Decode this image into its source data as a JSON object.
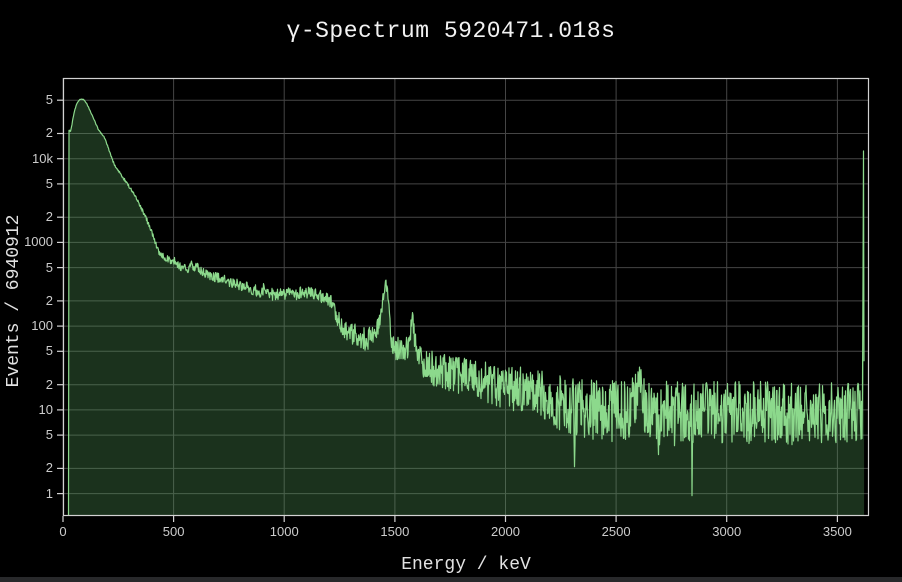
{
  "title": "γ-Spectrum 5920471.018s",
  "x_axis": {
    "label": "Energy / keV",
    "ticks": [
      {
        "value": 0,
        "label": "0"
      },
      {
        "value": 500,
        "label": "500"
      },
      {
        "value": 1000,
        "label": "1000"
      },
      {
        "value": 1500,
        "label": "1500"
      },
      {
        "value": 2000,
        "label": "2000"
      },
      {
        "value": 2500,
        "label": "2500"
      },
      {
        "value": 3000,
        "label": "3000"
      },
      {
        "value": 3500,
        "label": "3500"
      }
    ]
  },
  "y_axis": {
    "label": "Events / 6940912",
    "scale": "log",
    "ticks": [
      {
        "value": 1,
        "label": "1"
      },
      {
        "value": 2,
        "label": "2"
      },
      {
        "value": 5,
        "label": "5"
      },
      {
        "value": 10,
        "label": "10"
      },
      {
        "value": 20,
        "label": "2"
      },
      {
        "value": 50,
        "label": "5"
      },
      {
        "value": 100,
        "label": "100"
      },
      {
        "value": 200,
        "label": "2"
      },
      {
        "value": 500,
        "label": "5"
      },
      {
        "value": 1000,
        "label": "1000"
      },
      {
        "value": 2000,
        "label": "2"
      },
      {
        "value": 5000,
        "label": "5"
      },
      {
        "value": 10000,
        "label": "10k"
      },
      {
        "value": 20000,
        "label": "2"
      },
      {
        "value": 50000,
        "label": "5"
      }
    ]
  },
  "colors": {
    "background": "#000000",
    "line": "#8cd98c",
    "fill": "rgba(90,165,95,0.30)",
    "grid": "#454545",
    "axis": "#d2d2d2",
    "tick_label": "#cccccc",
    "title": "#f2f2f2",
    "axis_title": "#e2e2e2",
    "window_edge": "#28292b"
  },
  "chart_data": {
    "type": "area",
    "title": "γ-Spectrum 5920471.018s",
    "xlabel": "Energy / keV",
    "ylabel": "Events / 6940912",
    "xlim": [
      0,
      3643
    ],
    "ylim": [
      0.54,
      92000
    ],
    "yscale": "log",
    "grid": true,
    "total_events": "6940912",
    "live_time_s": "5920471.018",
    "notable_peaks_keV": [
      90,
      583,
      609,
      911,
      1120,
      1460,
      1580,
      2614,
      3617
    ],
    "noise": {
      "model": "log-uniform, amplitude_decades = min(0.5, 1.15/sqrt(counts))",
      "seed": 20240613
    },
    "series": [
      {
        "name": "gamma-spectrum",
        "points": [
          [
            25,
            0.5
          ],
          [
            26,
            21500
          ],
          [
            30,
            22000
          ],
          [
            34,
            21000
          ],
          [
            38,
            23500
          ],
          [
            44,
            29000
          ],
          [
            50,
            35000
          ],
          [
            57,
            41000
          ],
          [
            64,
            46000
          ],
          [
            71,
            49500
          ],
          [
            78,
            51200
          ],
          [
            84,
            51800
          ],
          [
            90,
            51400
          ],
          [
            96,
            50000
          ],
          [
            103,
            47500
          ],
          [
            110,
            44000
          ],
          [
            118,
            39800
          ],
          [
            126,
            35800
          ],
          [
            134,
            32000
          ],
          [
            142,
            28600
          ],
          [
            150,
            25600
          ],
          [
            158,
            23000
          ],
          [
            165,
            21200
          ],
          [
            172,
            20000
          ],
          [
            179,
            19300
          ],
          [
            186,
            18200
          ],
          [
            193,
            16600
          ],
          [
            200,
            14600
          ],
          [
            208,
            12600
          ],
          [
            216,
            11000
          ],
          [
            224,
            9600
          ],
          [
            232,
            8600
          ],
          [
            240,
            7900
          ],
          [
            250,
            7200
          ],
          [
            260,
            6600
          ],
          [
            272,
            5950
          ],
          [
            284,
            5350
          ],
          [
            296,
            4800
          ],
          [
            310,
            4200
          ],
          [
            325,
            3600
          ],
          [
            340,
            3050
          ],
          [
            355,
            2550
          ],
          [
            370,
            2100
          ],
          [
            385,
            1700
          ],
          [
            400,
            1350
          ],
          [
            412,
            1100
          ],
          [
            424,
            900
          ],
          [
            436,
            760
          ],
          [
            450,
            690
          ],
          [
            465,
            645
          ],
          [
            480,
            610
          ],
          [
            495,
            585
          ],
          [
            508,
            600
          ],
          [
            516,
            540
          ],
          [
            530,
            505
          ],
          [
            545,
            490
          ],
          [
            560,
            480
          ],
          [
            572,
            505
          ],
          [
            581,
            550
          ],
          [
            590,
            490
          ],
          [
            600,
            505
          ],
          [
            610,
            515
          ],
          [
            620,
            460
          ],
          [
            635,
            435
          ],
          [
            655,
            415
          ],
          [
            675,
            398
          ],
          [
            695,
            382
          ],
          [
            720,
            362
          ],
          [
            745,
            345
          ],
          [
            770,
            328
          ],
          [
            795,
            315
          ],
          [
            820,
            300
          ],
          [
            845,
            285
          ],
          [
            870,
            272
          ],
          [
            890,
            258
          ],
          [
            903,
            270
          ],
          [
            911,
            290
          ],
          [
            919,
            262
          ],
          [
            935,
            246
          ],
          [
            955,
            238
          ],
          [
            975,
            240
          ],
          [
            995,
            248
          ],
          [
            1015,
            243
          ],
          [
            1035,
            238
          ],
          [
            1055,
            243
          ],
          [
            1075,
            252
          ],
          [
            1095,
            247
          ],
          [
            1110,
            252
          ],
          [
            1122,
            262
          ],
          [
            1134,
            246
          ],
          [
            1150,
            236
          ],
          [
            1170,
            226
          ],
          [
            1190,
            216
          ],
          [
            1207,
            203
          ],
          [
            1218,
            185
          ],
          [
            1228,
            158
          ],
          [
            1238,
            132
          ],
          [
            1248,
            114
          ],
          [
            1258,
            103
          ],
          [
            1270,
            95
          ],
          [
            1285,
            88
          ],
          [
            1300,
            83
          ],
          [
            1318,
            79
          ],
          [
            1336,
            76
          ],
          [
            1354,
            72
          ],
          [
            1372,
            69
          ],
          [
            1390,
            72
          ],
          [
            1408,
            80
          ],
          [
            1422,
            92
          ],
          [
            1434,
            120
          ],
          [
            1444,
            185
          ],
          [
            1452,
            280
          ],
          [
            1458,
            330
          ],
          [
            1464,
            285
          ],
          [
            1470,
            195
          ],
          [
            1477,
            115
          ],
          [
            1484,
            72
          ],
          [
            1492,
            58
          ],
          [
            1502,
            54
          ],
          [
            1515,
            52
          ],
          [
            1530,
            50
          ],
          [
            1545,
            52
          ],
          [
            1558,
            58
          ],
          [
            1567,
            72
          ],
          [
            1574,
            105
          ],
          [
            1579,
            125
          ],
          [
            1585,
            95
          ],
          [
            1592,
            60
          ],
          [
            1600,
            45
          ],
          [
            1612,
            40
          ],
          [
            1625,
            37
          ],
          [
            1645,
            34
          ],
          [
            1670,
            31
          ],
          [
            1700,
            29
          ],
          [
            1730,
            27.5
          ],
          [
            1760,
            26
          ],
          [
            1790,
            25
          ],
          [
            1820,
            24
          ],
          [
            1850,
            23
          ],
          [
            1885,
            22
          ],
          [
            1920,
            21
          ],
          [
            1955,
            20
          ],
          [
            1990,
            19.5
          ],
          [
            2025,
            18.5
          ],
          [
            2060,
            17.5
          ],
          [
            2095,
            16.5
          ],
          [
            2130,
            15.5
          ],
          [
            2165,
            14.5
          ],
          [
            2200,
            13.5
          ],
          [
            2235,
            12.5
          ],
          [
            2270,
            11.8
          ],
          [
            2305,
            11
          ],
          [
            2312,
            4.5
          ],
          [
            2318,
            11
          ],
          [
            2340,
            10.5
          ],
          [
            2370,
            10
          ],
          [
            2400,
            10
          ],
          [
            2430,
            10
          ],
          [
            2460,
            9.8
          ],
          [
            2490,
            9.5
          ],
          [
            2520,
            9.5
          ],
          [
            2550,
            10
          ],
          [
            2575,
            12
          ],
          [
            2595,
            16
          ],
          [
            2608,
            24
          ],
          [
            2618,
            16
          ],
          [
            2630,
            11.5
          ],
          [
            2650,
            9.5
          ],
          [
            2670,
            9.2
          ],
          [
            2688,
            9
          ],
          [
            2691,
            2.4
          ],
          [
            2694,
            9
          ],
          [
            2715,
            9.2
          ],
          [
            2740,
            9
          ],
          [
            2765,
            8.8
          ],
          [
            2790,
            9
          ],
          [
            2815,
            9.2
          ],
          [
            2841,
            9
          ],
          [
            2844,
            1.15
          ],
          [
            2847,
            9
          ],
          [
            2870,
            9.2
          ],
          [
            2900,
            9
          ],
          [
            2930,
            9.3
          ],
          [
            2960,
            9
          ],
          [
            3000,
            9.2
          ],
          [
            3040,
            9
          ],
          [
            3080,
            9.3
          ],
          [
            3120,
            9
          ],
          [
            3160,
            9.4
          ],
          [
            3200,
            9.1
          ],
          [
            3240,
            9.3
          ],
          [
            3280,
            9
          ],
          [
            3320,
            9.4
          ],
          [
            3360,
            9.2
          ],
          [
            3400,
            9.3
          ],
          [
            3440,
            9.1
          ],
          [
            3480,
            9.5
          ],
          [
            3520,
            9.3
          ],
          [
            3560,
            9.6
          ],
          [
            3590,
            9.8
          ],
          [
            3612,
            10
          ],
          [
            3615,
            10
          ],
          [
            3617,
            12500
          ],
          [
            3620,
            12500
          ],
          [
            3621,
            0.54
          ]
        ]
      }
    ]
  }
}
